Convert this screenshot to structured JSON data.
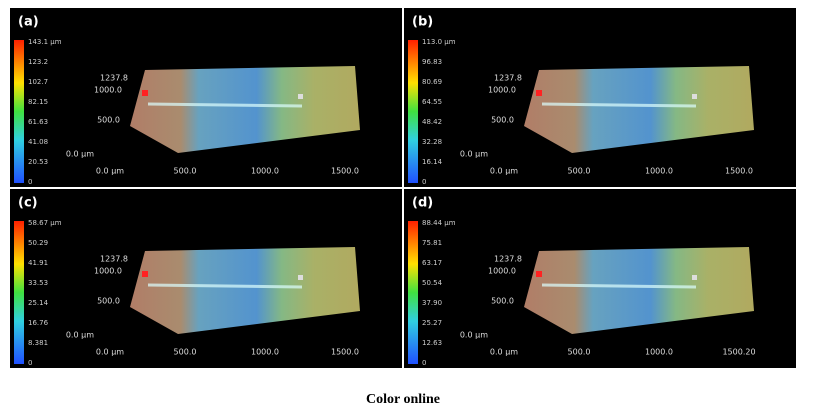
{
  "panels": [
    {
      "label": "(a)",
      "scale": [
        "143.1 µm",
        "123.2",
        "102.7",
        "82.15",
        "61.63",
        "41.08",
        "20.53",
        "0"
      ],
      "y_axis": [
        "1237.8",
        "1000.0",
        "500.0",
        "0.0 µm"
      ],
      "x_axis": [
        "0.0 µm",
        "500.0",
        "1000.0",
        "1500.0"
      ]
    },
    {
      "label": "(b)",
      "scale": [
        "113.0 µm",
        "96.83",
        "80.69",
        "64.55",
        "48.42",
        "32.28",
        "16.14",
        "0"
      ],
      "y_axis": [
        "1237.8",
        "1000.0",
        "500.0",
        "0.0 µm"
      ],
      "x_axis": [
        "0.0 µm",
        "500.0",
        "1000.0",
        "1500.0"
      ]
    },
    {
      "label": "(c)",
      "scale": [
        "58.67 µm",
        "50.29",
        "41.91",
        "33.53",
        "25.14",
        "16.76",
        "8.381",
        "0"
      ],
      "y_axis": [
        "1237.8",
        "1000.0",
        "500.0",
        "0.0 µm"
      ],
      "x_axis": [
        "0.0 µm",
        "500.0",
        "1000.0",
        "1500.0"
      ]
    },
    {
      "label": "(d)",
      "scale": [
        "88.44 µm",
        "75.81",
        "63.17",
        "50.54",
        "37.90",
        "25.27",
        "12.63",
        "0"
      ],
      "y_axis": [
        "1237.8",
        "1000.0",
        "500.0",
        "0.0 µm"
      ],
      "x_axis": [
        "0.0 µm",
        "500.0",
        "1000.0",
        "1500.20"
      ]
    }
  ],
  "caption": "Color online"
}
